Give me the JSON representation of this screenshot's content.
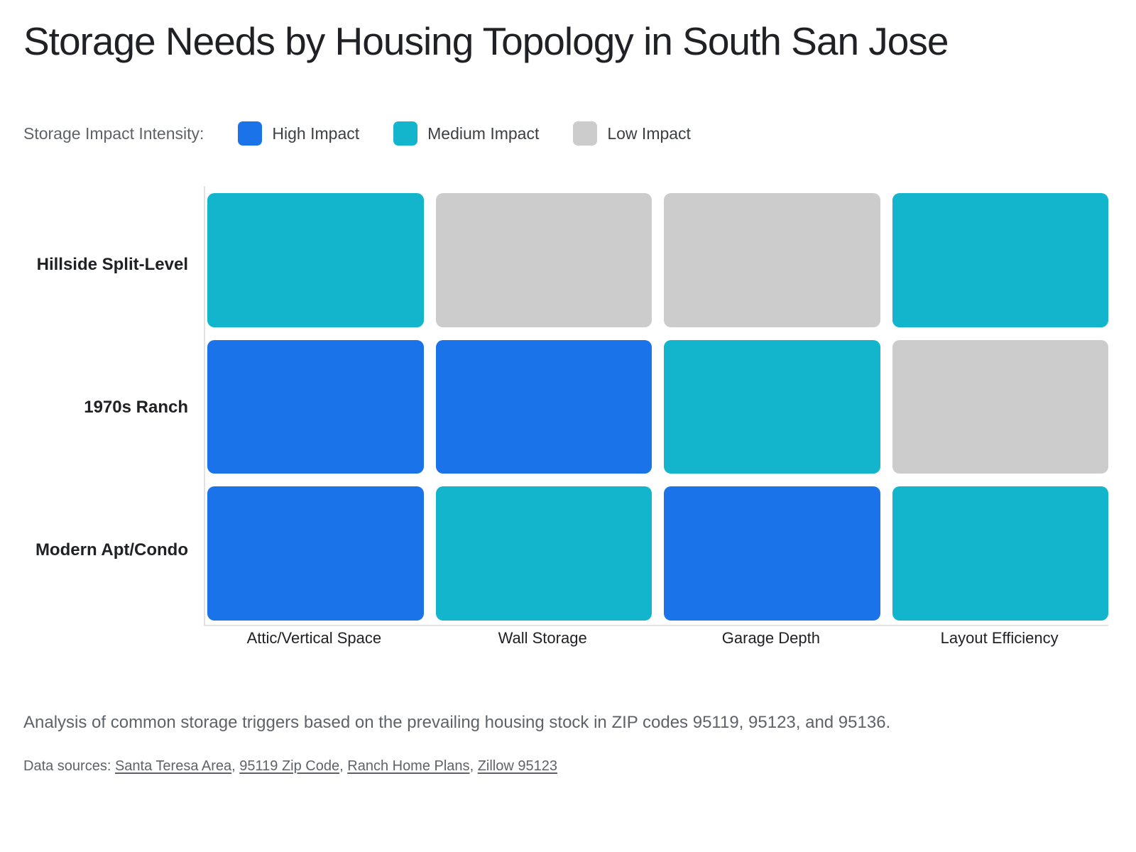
{
  "title": "Storage Needs by Housing Topology in South San Jose",
  "legend": {
    "title": "Storage Impact Intensity:",
    "items": [
      {
        "key": "high",
        "label": "High Impact",
        "color": "#1a73e8"
      },
      {
        "key": "medium",
        "label": "Medium Impact",
        "color": "#12b5cb"
      },
      {
        "key": "low",
        "label": "Low Impact",
        "color": "#cccccc"
      }
    ]
  },
  "chart_data": {
    "type": "heatmap",
    "title": "Storage Needs by Housing Topology in South San Jose",
    "rows": [
      "Hillside Split-Level",
      "1970s Ranch",
      "Modern Apt/Condo"
    ],
    "columns": [
      "Attic/Vertical Space",
      "Wall Storage",
      "Garage Depth",
      "Layout Efficiency"
    ],
    "values": [
      [
        "medium",
        "low",
        "low",
        "medium"
      ],
      [
        "high",
        "high",
        "medium",
        "low"
      ],
      [
        "high",
        "medium",
        "high",
        "medium"
      ]
    ],
    "levels": {
      "high": {
        "label": "High Impact",
        "color": "#1a73e8"
      },
      "medium": {
        "label": "Medium Impact",
        "color": "#12b5cb"
      },
      "low": {
        "label": "Low Impact",
        "color": "#cccccc"
      }
    },
    "legend_position": "top",
    "grid": false,
    "axis_line_color": "#e2e2e2"
  },
  "caption": "Analysis of common storage triggers based on the prevailing housing stock in ZIP codes 95119, 95123, and 95136.",
  "sources": {
    "prefix": "Data sources: ",
    "separator": ", ",
    "links": [
      {
        "label": "Santa Teresa Area"
      },
      {
        "label": "95119 Zip Code"
      },
      {
        "label": "Ranch Home Plans"
      },
      {
        "label": "Zillow 95123"
      }
    ]
  },
  "colors": {
    "high_impact": "#1a73e8",
    "medium_impact": "#12b5cb",
    "low_impact": "#cccccc",
    "title_text": "#202124",
    "muted_text": "#5f6368",
    "axis_line": "#e2e2e2"
  }
}
